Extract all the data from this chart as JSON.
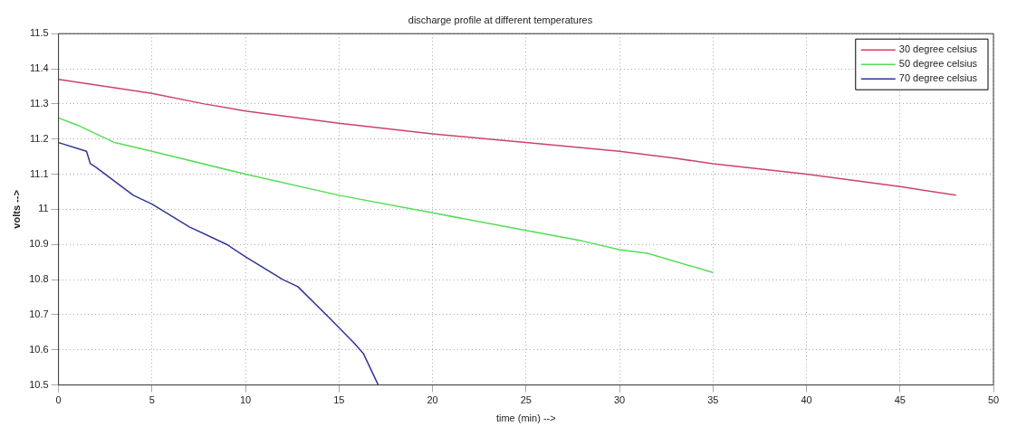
{
  "chart_data": {
    "type": "line",
    "title": "discharge profile at different temperatures",
    "xlabel": "time (min) -->",
    "ylabel": "volts -->",
    "xlim": [
      0,
      50
    ],
    "xticks": [
      0,
      5,
      10,
      15,
      20,
      25,
      30,
      35,
      40,
      45,
      50
    ],
    "ylim": [
      10.5,
      11.5
    ],
    "yticks": [
      10.5,
      10.6,
      10.7,
      10.8,
      10.9,
      11,
      11.1,
      11.2,
      11.3,
      11.4,
      11.5
    ],
    "grid": true,
    "legend": "top right",
    "line_style": "solid",
    "marker": "none",
    "series": [
      {
        "name": "30 degree celsius",
        "color": "#cc4466",
        "x": [
          0,
          5,
          7.8,
          10,
          15,
          20,
          23,
          25,
          30,
          33,
          35,
          40,
          45,
          48
        ],
        "values": [
          11.37,
          11.33,
          11.3,
          11.28,
          11.245,
          11.215,
          11.2,
          11.19,
          11.165,
          11.145,
          11.13,
          11.1,
          11.065,
          11.04
        ]
      },
      {
        "name": "50 degree celsius",
        "color": "#55dd55",
        "x": [
          0,
          1,
          3,
          5,
          10,
          15,
          20,
          25,
          28,
          30,
          31.5,
          35
        ],
        "values": [
          11.26,
          11.24,
          11.19,
          11.165,
          11.1,
          11.04,
          10.99,
          10.94,
          10.91,
          10.885,
          10.875,
          10.82
        ]
      },
      {
        "name": "70 degree celsius",
        "color": "#333399",
        "x": [
          0,
          1.5,
          1.7,
          2,
          2.5,
          4,
          5,
          7,
          9,
          10,
          12,
          12.8,
          14.5,
          15.8,
          16.3,
          17.1
        ],
        "values": [
          11.19,
          11.165,
          11.13,
          11.12,
          11.1,
          11.04,
          11.015,
          10.95,
          10.9,
          10.865,
          10.8,
          10.78,
          10.69,
          10.62,
          10.59,
          10.5
        ]
      }
    ]
  }
}
